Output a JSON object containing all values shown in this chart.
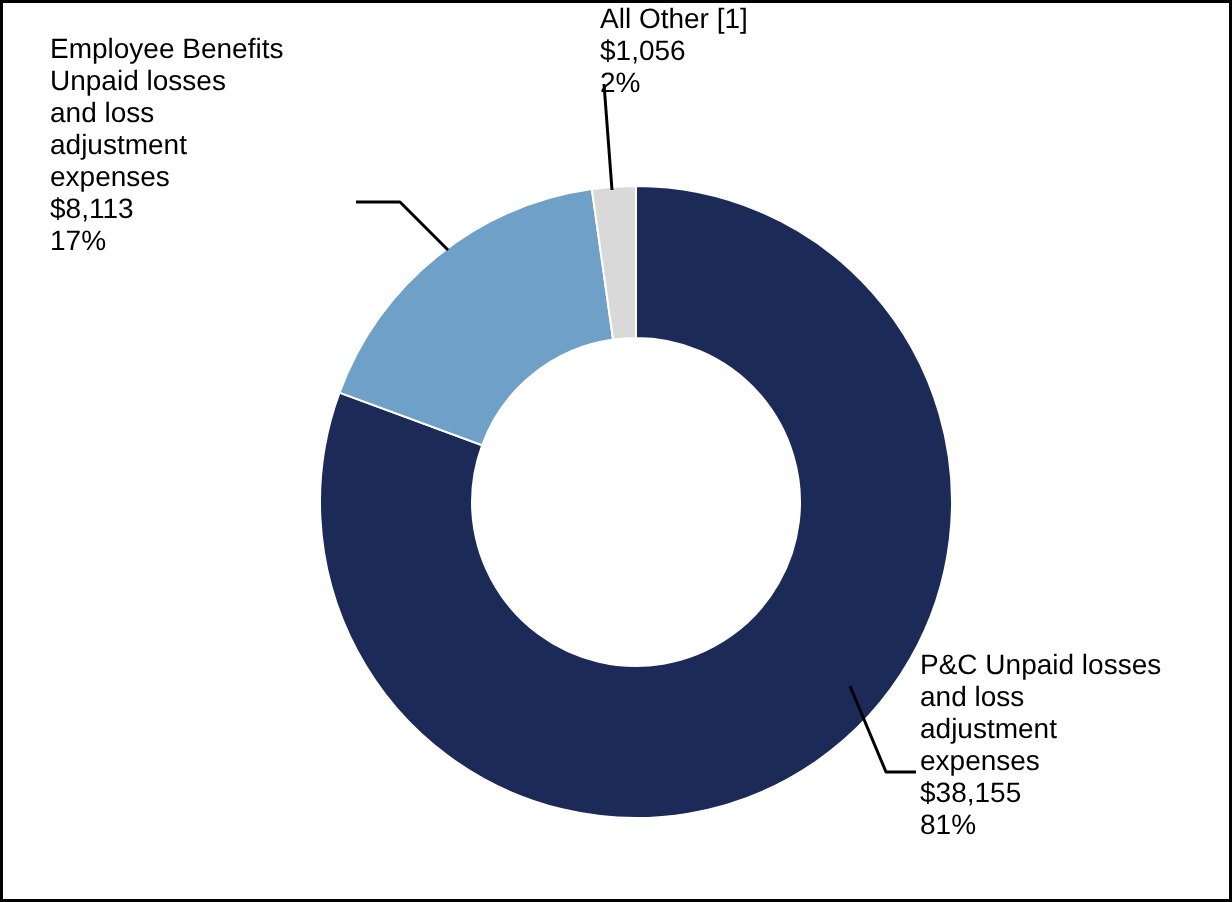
{
  "chart_data": {
    "type": "donut",
    "categories": [
      "P&C Unpaid losses\nand loss\nadjustment\nexpenses",
      "Employee Benefits\nUnpaid losses\nand loss\nadjustment\nexpenses",
      "All Other [1]"
    ],
    "values": [
      38155,
      8113,
      1056
    ],
    "colors": [
      "#1b2a57",
      "#6fa0c8",
      "#d9d9d9"
    ],
    "value_labels": [
      "$38,155\n81%",
      "$8,113\n17%",
      "$1,056\n2%"
    ]
  }
}
